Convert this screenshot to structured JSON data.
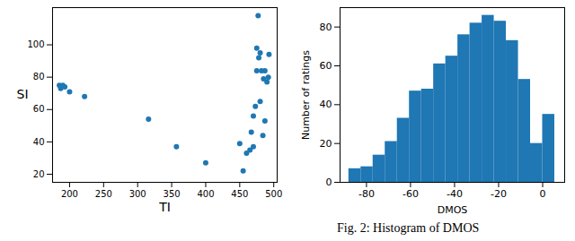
{
  "chart_data": [
    {
      "type": "scatter",
      "xlabel": "TI",
      "ylabel": "SI",
      "color": "#1f77b4",
      "x": [
        185,
        187,
        190,
        193,
        200,
        222,
        316,
        357,
        400,
        450,
        455,
        460,
        465,
        467,
        470,
        470,
        473,
        475,
        475,
        477,
        478,
        480,
        480,
        482,
        484,
        485,
        487,
        487,
        490,
        492,
        493
      ],
      "values": [
        75,
        73,
        75,
        74,
        71,
        68,
        54,
        37,
        27,
        39,
        22,
        33,
        35,
        46,
        37,
        56,
        62,
        98,
        84,
        118,
        92,
        65,
        95,
        84,
        44,
        79,
        53,
        84,
        77,
        80,
        94
      ],
      "xlim": [
        175,
        505
      ],
      "xticks": [
        200,
        250,
        300,
        350,
        400,
        450,
        500
      ],
      "ylim": [
        15,
        123
      ],
      "yticks": [
        20,
        40,
        60,
        80,
        100
      ]
    },
    {
      "type": "histogram",
      "xlabel": "DMOS",
      "ylabel": "Number of ratings",
      "color": "#1f77b4",
      "bins": [
        -88,
        -82.5,
        -77,
        -71.5,
        -66,
        -60.5,
        -55,
        -49.5,
        -44,
        -38.5,
        -33,
        -27.5,
        -22,
        -16.5,
        -11,
        -5.5,
        0,
        5.5
      ],
      "values": [
        7,
        8,
        14,
        21,
        33,
        47,
        48,
        61,
        65,
        76,
        82,
        86,
        83,
        73,
        53,
        20,
        35
      ],
      "xlim": [
        -92,
        10
      ],
      "xticks": [
        -80,
        -60,
        -40,
        -20,
        0
      ],
      "ylim": [
        0,
        90
      ],
      "yticks": [
        0,
        20,
        40,
        60,
        80
      ]
    }
  ],
  "caption": "Fig. 2: Histogram of DMOS"
}
